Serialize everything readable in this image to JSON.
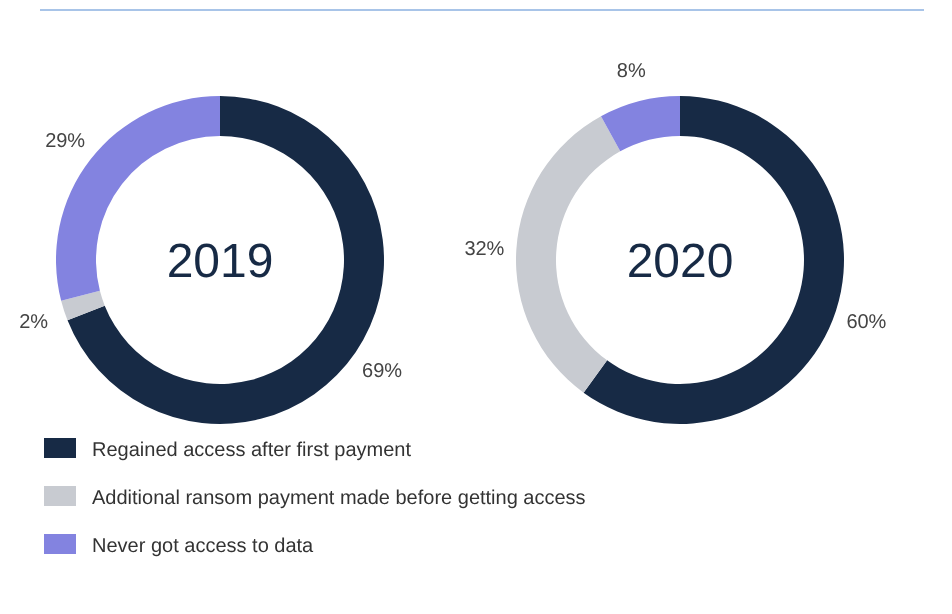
{
  "chart_data": {
    "type": "donut",
    "categories": [
      "Regained access after first payment",
      "Additional ransom payment made before getting access",
      "Never got access to data"
    ],
    "colors": [
      "#172a45",
      "#c8cbd1",
      "#8383e0"
    ],
    "legend": "bottom",
    "series": [
      {
        "name": "2019",
        "values": [
          69,
          2,
          29
        ],
        "value_labels": [
          "69%",
          "2%",
          "29%"
        ]
      },
      {
        "name": "2020",
        "values": [
          60,
          32,
          8
        ],
        "value_labels": [
          "60%",
          "32%",
          "8%"
        ]
      }
    ]
  }
}
